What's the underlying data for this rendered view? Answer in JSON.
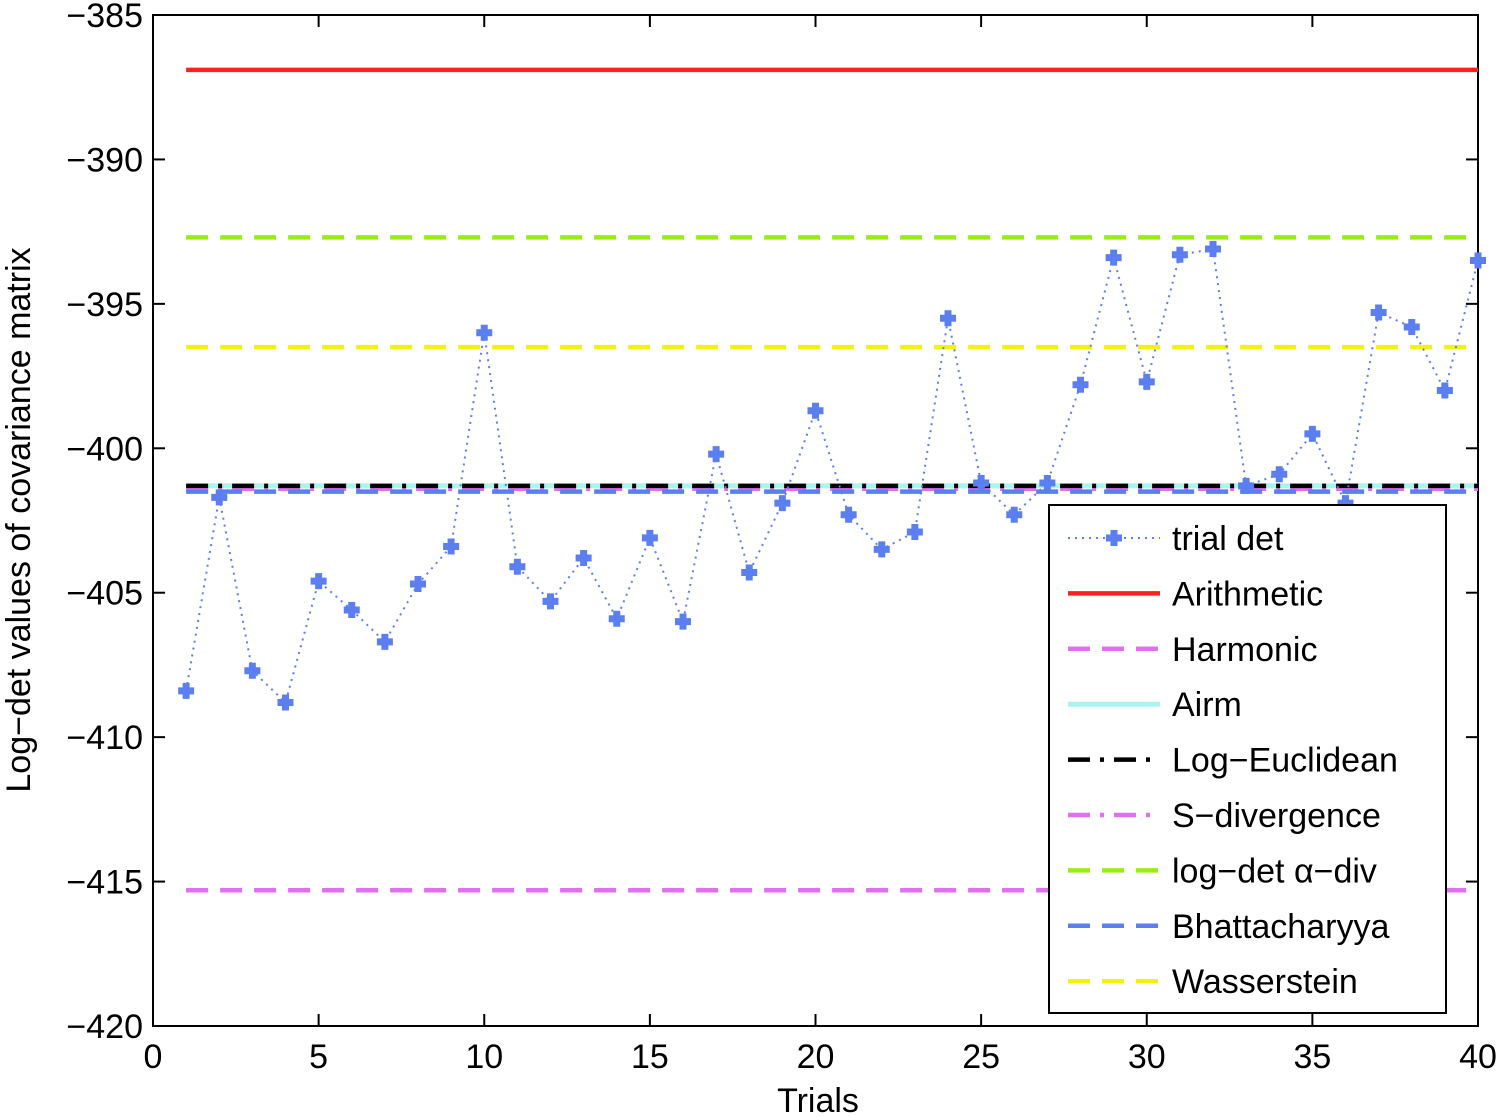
{
  "chart_data": {
    "type": "line",
    "title": "",
    "xlabel": "Trials",
    "ylabel": "Log−det values of covariance matrix",
    "xlim": [
      0,
      40
    ],
    "ylim": [
      -420,
      -385
    ],
    "xticks": [
      0,
      5,
      10,
      15,
      20,
      25,
      30,
      35,
      40
    ],
    "yticks": [
      -420,
      -415,
      -410,
      -405,
      -400,
      -395,
      -390,
      -385
    ],
    "grid": false,
    "legend_position": "bottom-right",
    "series": [
      {
        "name": "trial det",
        "style": "dotted-marker",
        "color": "#5b7ff0",
        "x": [
          1,
          2,
          3,
          4,
          5,
          6,
          7,
          8,
          9,
          10,
          11,
          12,
          13,
          14,
          15,
          16,
          17,
          18,
          19,
          20,
          21,
          22,
          23,
          24,
          25,
          26,
          27,
          28,
          29,
          30,
          31,
          32,
          33,
          34,
          35,
          36,
          37,
          38,
          39,
          40
        ],
        "values": [
          -408.4,
          -401.7,
          -407.7,
          -408.8,
          -404.6,
          -405.6,
          -406.7,
          -404.7,
          -403.4,
          -396.0,
          -404.1,
          -405.3,
          -403.8,
          -405.9,
          -403.1,
          -406.0,
          -400.2,
          -404.3,
          -401.9,
          -398.7,
          -402.3,
          -403.5,
          -402.9,
          -395.5,
          -401.2,
          -402.3,
          -401.2,
          -397.8,
          -393.4,
          -397.7,
          -393.3,
          -393.1,
          -401.3,
          -400.9,
          -399.5,
          -401.9,
          -395.3,
          -395.8,
          -398.0,
          -393.5
        ]
      },
      {
        "name": "Arithmetic",
        "style": "solid",
        "color": "#ff2020",
        "constant": -386.9
      },
      {
        "name": "Harmonic",
        "style": "dashed",
        "color": "#e070f0",
        "constant": -415.3
      },
      {
        "name": "Airm",
        "style": "solid",
        "color": "#a8f4ee",
        "constant": -401.3
      },
      {
        "name": "Log−Euclidean",
        "style": "dashdot",
        "color": "#000000",
        "constant": -401.3
      },
      {
        "name": "S−divergence",
        "style": "dashdot",
        "color": "#e070f0",
        "constant": -401.4
      },
      {
        "name": "log−det α−div",
        "style": "dashed",
        "color": "#99ee11",
        "constant": -392.7
      },
      {
        "name": "Bhattacharyya",
        "style": "dashed",
        "color": "#5b7ff0",
        "constant": -401.5
      },
      {
        "name": "Wasserstein",
        "style": "dashed",
        "color": "#f2f210",
        "constant": -396.5
      }
    ]
  }
}
